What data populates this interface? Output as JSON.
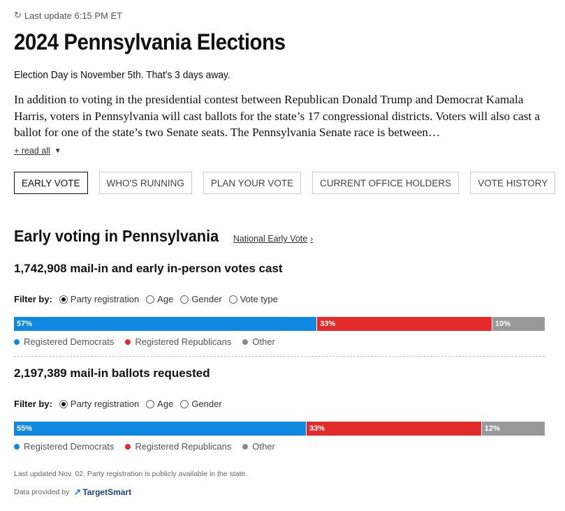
{
  "header": {
    "last_update": "Last update 6:15 PM ET",
    "title": "2024 Pennsylvania Elections",
    "subtitle": "Election Day is November 5th. That's 3 days away.",
    "intro": "In addition to voting in the presidential contest between Republican Donald Trump and Democrat Kamala Harris, voters in Pennsylvania will cast ballots for the state’s 17 congressional districts. Voters will also cast a ballot for one of the state’s two Senate seats. The Pennsylvania Senate race is between…",
    "read_all": "+ read all"
  },
  "tabs": [
    {
      "label": "EARLY VOTE",
      "active": true
    },
    {
      "label": "WHO'S RUNNING",
      "active": false
    },
    {
      "label": "PLAN YOUR VOTE",
      "active": false
    },
    {
      "label": "CURRENT OFFICE HOLDERS",
      "active": false
    },
    {
      "label": "VOTE HISTORY",
      "active": false
    }
  ],
  "early_voting": {
    "title": "Early voting in Pennsylvania",
    "national_link": "National Early Vote",
    "cast": {
      "number": "1,742,908",
      "text": "mail-in and early in-person votes cast",
      "filter_label": "Filter by:",
      "filters": [
        "Party registration",
        "Age",
        "Gender",
        "Vote type"
      ],
      "selected_filter": "Party registration",
      "bar": {
        "dem": 57,
        "rep": 33,
        "other": 10
      },
      "bar_labels": {
        "dem": "57%",
        "rep": "33%",
        "other": "10%"
      }
    },
    "requested": {
      "number": "2,197,389",
      "text": "mail-in ballots requested",
      "filter_label": "Filter by:",
      "filters": [
        "Party registration",
        "Age",
        "Gender"
      ],
      "selected_filter": "Party registration",
      "bar": {
        "dem": 55,
        "rep": 33,
        "other": 12
      },
      "bar_labels": {
        "dem": "55%",
        "rep": "33%",
        "other": "12%"
      }
    },
    "legend": [
      "Registered Democrats",
      "Registered Republicans",
      "Other"
    ],
    "colors": {
      "dem": "#0e88e0",
      "rep": "#e32b2b",
      "other": "#999999"
    },
    "footnote": "Last updated Nov. 02. Party registration is publicly available in the state.",
    "provided_by": "Data provided by",
    "provider": "TargetSmart"
  }
}
